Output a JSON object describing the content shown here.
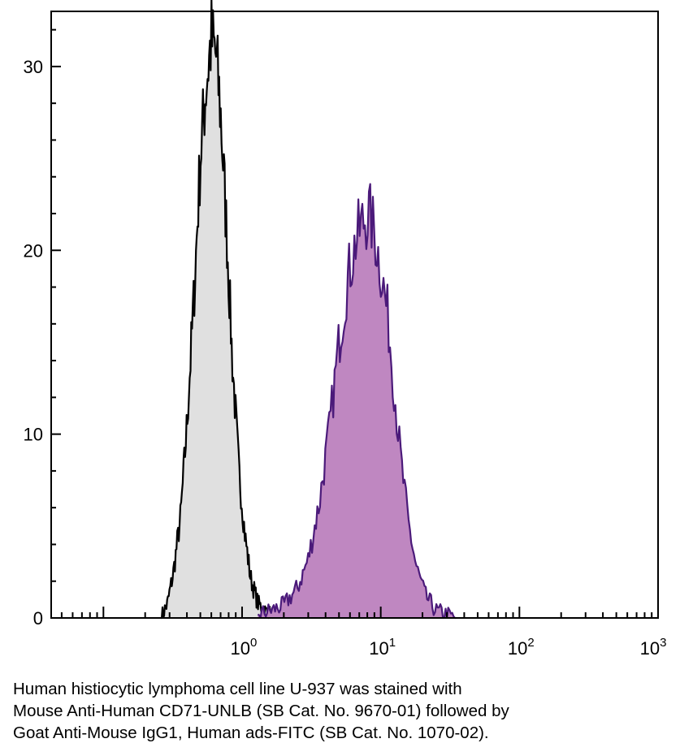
{
  "chart_data": {
    "type": "area",
    "x_scale": "log",
    "xlim": [
      0.042,
      1000
    ],
    "ylim": [
      0,
      33
    ],
    "grid": false,
    "legend": "none",
    "x_ticks": [
      {
        "value": 1,
        "base": "10",
        "exp": "0"
      },
      {
        "value": 10,
        "base": "10",
        "exp": "1"
      },
      {
        "value": 100,
        "base": "10",
        "exp": "2"
      },
      {
        "value": 1000,
        "base": "10",
        "exp": "3"
      }
    ],
    "y_ticks": [
      {
        "value": 0,
        "label": "0"
      },
      {
        "value": 10,
        "label": "10"
      },
      {
        "value": 20,
        "label": "20"
      },
      {
        "value": 30,
        "label": "30"
      }
    ],
    "series": [
      {
        "key": "control",
        "fill": "#e0e0e0",
        "stroke": "#000000",
        "x": [
          0.26,
          0.29,
          0.32,
          0.36,
          0.4,
          0.45,
          0.5,
          0.55,
          0.6,
          0.65,
          0.7,
          0.78,
          0.85,
          0.95,
          1.05,
          1.15,
          1.3,
          1.45,
          1.6,
          1.8
        ],
        "y": [
          0,
          0.8,
          2.5,
          5.5,
          10.5,
          17.5,
          25,
          29,
          31.5,
          30.5,
          27.5,
          20.5,
          14,
          8,
          4.5,
          2.2,
          0.8,
          0.4,
          0.2,
          0
        ]
      },
      {
        "key": "cd71",
        "fill": "#bf87c1",
        "stroke": "#4b1a7a",
        "x": [
          1.3,
          1.6,
          2.0,
          2.5,
          3.0,
          3.6,
          4.3,
          5.0,
          5.8,
          6.6,
          7.4,
          8.2,
          9.0,
          10.0,
          11.2,
          12.5,
          14.0,
          15.8,
          18.0,
          21.0,
          25.0,
          30.0,
          35.0
        ],
        "y": [
          0.2,
          0.4,
          0.7,
          1.6,
          3.2,
          6.2,
          10.5,
          15,
          18.5,
          20.5,
          21.5,
          22,
          21,
          19,
          16.5,
          12.5,
          8.5,
          5.2,
          2.8,
          1.2,
          0.4,
          0.2,
          0
        ]
      }
    ]
  },
  "caption": {
    "line1": "Human histiocytic lymphoma cell line U-937 was stained with",
    "line2": "Mouse Anti-Human CD71-UNLB (SB Cat. No. 9670-01) followed by",
    "line3": "Goat Anti-Mouse IgG1, Human ads-FITC (SB Cat. No. 1070-02)."
  }
}
